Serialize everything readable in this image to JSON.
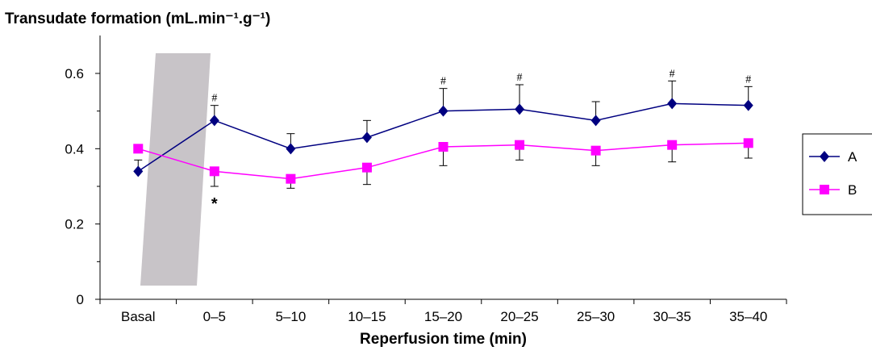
{
  "chart_data": {
    "type": "line",
    "ylabel": "Transudate formation (mL.min⁻¹.g⁻¹)",
    "xlabel": "Reperfusion time (min)",
    "categories": [
      "Basal",
      "0–5",
      "5–10",
      "10–15",
      "15–20",
      "20–25",
      "25–30",
      "30–35",
      "35–40"
    ],
    "ylim": [
      0,
      0.65
    ],
    "yticks": [
      0,
      0.2,
      0.4,
      0.6
    ],
    "ytick_labels": [
      "0",
      "0.2",
      "0.4",
      "0.6"
    ],
    "grid": false,
    "legend_position": "right",
    "series": [
      {
        "name": "A",
        "color": "#000080",
        "marker": "diamond",
        "values": [
          0.34,
          0.475,
          0.4,
          0.43,
          0.5,
          0.505,
          0.475,
          0.52,
          0.515
        ],
        "error_up": [
          0.03,
          0.04,
          0.04,
          0.045,
          0.06,
          0.065,
          0.05,
          0.06,
          0.05
        ],
        "annotations": [
          "",
          "#",
          "",
          "",
          "#",
          "#",
          "",
          "#",
          "#"
        ]
      },
      {
        "name": "B",
        "color": "#ff00ff",
        "marker": "square",
        "values": [
          0.4,
          0.34,
          0.32,
          0.35,
          0.405,
          0.41,
          0.395,
          0.41,
          0.415
        ],
        "error_down": [
          0.0,
          0.04,
          0.025,
          0.045,
          0.05,
          0.04,
          0.04,
          0.045,
          0.04
        ],
        "annotations": [
          "",
          "*",
          "",
          "",
          "",
          "",
          "",
          "",
          ""
        ]
      }
    ],
    "shaded_region": {
      "color": "#c8c4c8",
      "between": [
        "Basal",
        "0–5"
      ],
      "description_visible": false
    }
  }
}
